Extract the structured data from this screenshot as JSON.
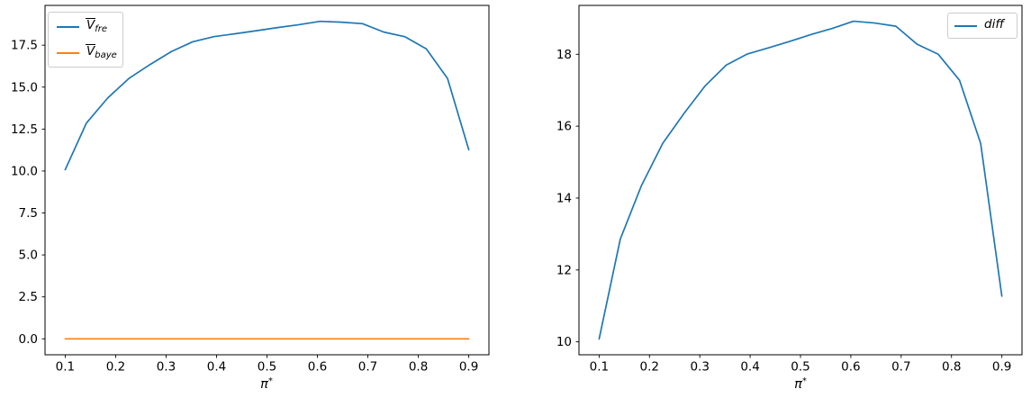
{
  "figure": {
    "background": "#ffffff"
  },
  "colors": {
    "blue": "#1f77b4",
    "orange": "#ff7f0e",
    "axis": "#000000",
    "legend_border": "#cccccc"
  },
  "legends": {
    "left": {
      "entries": [
        {
          "main": "V",
          "overline": true,
          "sub": "fre",
          "color": "#1f77b4"
        },
        {
          "main": "V",
          "overline": true,
          "sub": "baye",
          "color": "#ff7f0e"
        }
      ]
    },
    "right": {
      "entries": [
        {
          "main": "diff",
          "overline": false,
          "sub": "",
          "color": "#1f77b4"
        }
      ]
    }
  },
  "xlabel": {
    "symbol": "π",
    "sup": "*"
  },
  "chart_data": [
    {
      "type": "line",
      "panel": "left",
      "title": "",
      "xlabel": "π*",
      "ylabel": "",
      "grid": false,
      "legend_position": "upper-left",
      "xlim": [
        0.06,
        0.94
      ],
      "ylim": [
        -0.95,
        19.87
      ],
      "xticks": [
        0.1,
        0.2,
        0.3,
        0.4,
        0.5,
        0.6,
        0.7,
        0.8,
        0.9
      ],
      "xtick_labels": [
        "0.1",
        "0.2",
        "0.3",
        "0.4",
        "0.5",
        "0.6",
        "0.7",
        "0.8",
        "0.9"
      ],
      "yticks": [
        0.0,
        2.5,
        5.0,
        7.5,
        10.0,
        12.5,
        15.0,
        17.5
      ],
      "ytick_labels": [
        "0.0",
        "2.5",
        "5.0",
        "7.5",
        "10.0",
        "12.5",
        "15.0",
        "17.5"
      ],
      "x": [
        0.1,
        0.1421,
        0.1842,
        0.2263,
        0.2684,
        0.3105,
        0.3526,
        0.3947,
        0.4368,
        0.4789,
        0.5211,
        0.5632,
        0.6053,
        0.6474,
        0.6895,
        0.7316,
        0.7737,
        0.8158,
        0.8579,
        0.9
      ],
      "series": [
        {
          "name": "V_fre",
          "color": "#1f77b4",
          "values": [
            10.08,
            12.86,
            14.35,
            15.52,
            16.35,
            17.12,
            17.7,
            18.01,
            18.18,
            18.36,
            18.55,
            18.72,
            18.92,
            18.87,
            18.78,
            18.28,
            18.0,
            17.28,
            15.52,
            11.27
          ]
        },
        {
          "name": "V_baye",
          "color": "#ff7f0e",
          "values": [
            0,
            0,
            0,
            0,
            0,
            0,
            0,
            0,
            0,
            0,
            0,
            0,
            0,
            0,
            0,
            0,
            0,
            0,
            0,
            0
          ]
        }
      ]
    },
    {
      "type": "line",
      "panel": "right",
      "title": "",
      "xlabel": "π*",
      "ylabel": "",
      "grid": false,
      "legend_position": "upper-right",
      "xlim": [
        0.06,
        0.94
      ],
      "ylim": [
        9.64,
        19.36
      ],
      "xticks": [
        0.1,
        0.2,
        0.3,
        0.4,
        0.5,
        0.6,
        0.7,
        0.8,
        0.9
      ],
      "xtick_labels": [
        "0.1",
        "0.2",
        "0.3",
        "0.4",
        "0.5",
        "0.6",
        "0.7",
        "0.8",
        "0.9"
      ],
      "yticks": [
        10,
        12,
        14,
        16,
        18
      ],
      "ytick_labels": [
        "10",
        "12",
        "14",
        "16",
        "18"
      ],
      "x": [
        0.1,
        0.1421,
        0.1842,
        0.2263,
        0.2684,
        0.3105,
        0.3526,
        0.3947,
        0.4368,
        0.4789,
        0.5211,
        0.5632,
        0.6053,
        0.6474,
        0.6895,
        0.7316,
        0.7737,
        0.8158,
        0.8579,
        0.9
      ],
      "series": [
        {
          "name": "diff",
          "color": "#1f77b4",
          "values": [
            10.08,
            12.86,
            14.35,
            15.52,
            16.35,
            17.12,
            17.7,
            18.01,
            18.18,
            18.36,
            18.55,
            18.72,
            18.92,
            18.87,
            18.78,
            18.28,
            18.0,
            17.28,
            15.52,
            11.27
          ]
        }
      ]
    }
  ]
}
